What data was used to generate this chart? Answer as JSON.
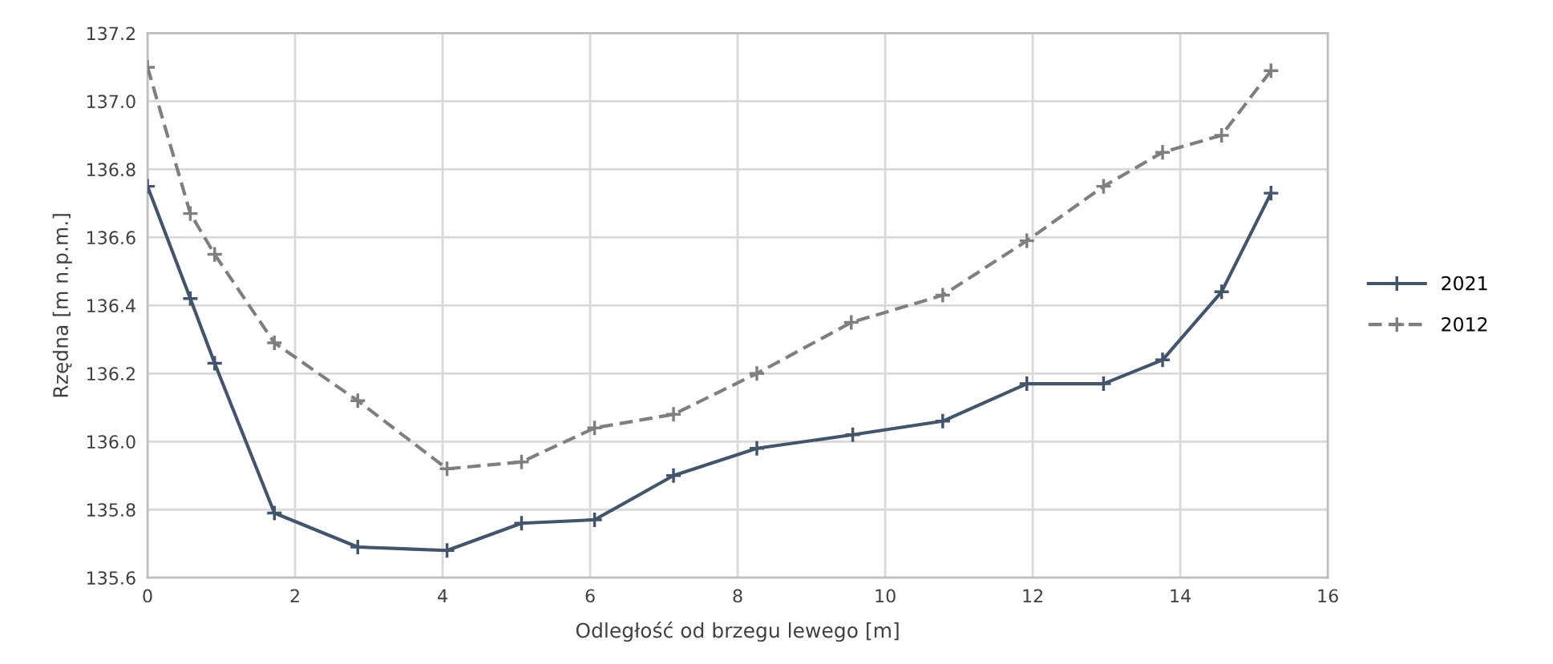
{
  "chart_data": {
    "type": "line",
    "xlabel": "Odległość od brzegu lewego [m]",
    "ylabel": "Rzędna [m n.p.m.]",
    "xlim": [
      0,
      16
    ],
    "xticks": [
      0,
      2,
      4,
      6,
      8,
      10,
      12,
      14,
      16
    ],
    "ylim": [
      135.6,
      137.2
    ],
    "yticks": [
      {
        "value": 135.6,
        "label": "135.6"
      },
      {
        "value": 135.8,
        "label": "135.8"
      },
      {
        "value": 136.0,
        "label": "136.0"
      },
      {
        "value": 136.2,
        "label": "136.2"
      },
      {
        "value": 136.4,
        "label": "136.4"
      },
      {
        "value": 136.6,
        "label": "136.6"
      },
      {
        "value": 136.8,
        "label": "136.8"
      },
      {
        "value": 137.0,
        "label": "137.0"
      },
      {
        "value": 137.2,
        "label": "137.2"
      }
    ],
    "grid": true,
    "legend": "right",
    "marker": "cross",
    "series": [
      {
        "name": "2021",
        "color": "#44546a",
        "line_style": "solid",
        "x": [
          0,
          0.58,
          0.91,
          1.72,
          2.85,
          4.06,
          5.07,
          6.06,
          7.13,
          8.26,
          9.56,
          10.78,
          11.92,
          12.96,
          13.76,
          14.56,
          15.23
        ],
        "values": [
          136.75,
          136.42,
          136.23,
          135.79,
          135.69,
          135.68,
          135.76,
          135.77,
          135.9,
          135.98,
          136.02,
          136.06,
          136.17,
          136.17,
          136.24,
          136.44,
          136.73
        ]
      },
      {
        "name": "2012",
        "color": "#7f7f7f",
        "line_style": "dashed",
        "x": [
          0,
          0.58,
          0.91,
          1.72,
          2.85,
          4.06,
          5.07,
          6.06,
          7.13,
          8.26,
          9.54,
          10.78,
          11.92,
          12.96,
          13.76,
          14.56,
          15.23
        ],
        "values": [
          137.1,
          136.67,
          136.55,
          136.29,
          136.12,
          135.92,
          135.94,
          136.04,
          136.08,
          136.2,
          136.35,
          136.43,
          136.59,
          136.75,
          136.85,
          136.9,
          137.09
        ]
      }
    ]
  }
}
